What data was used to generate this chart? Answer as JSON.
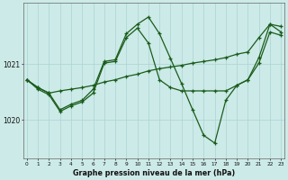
{
  "title": "Graphe pression niveau de la mer (hPa)",
  "background_color": "#cceae8",
  "grid_color": "#aad4d2",
  "line_color": "#1a5c1a",
  "x_labels": [
    "0",
    "1",
    "2",
    "3",
    "4",
    "5",
    "6",
    "7",
    "8",
    "9",
    "10",
    "11",
    "12",
    "13",
    "14",
    "15",
    "16",
    "17",
    "18",
    "19",
    "20",
    "21",
    "22",
    "23"
  ],
  "y_ticks": [
    1020,
    1021
  ],
  "ylim": [
    1019.3,
    1022.1
  ],
  "xlim": [
    -0.3,
    23.3
  ],
  "series": [
    [
      1020.72,
      1020.58,
      1020.48,
      1020.52,
      1020.55,
      1020.58,
      1020.62,
      1020.68,
      1020.72,
      1020.78,
      1020.82,
      1020.88,
      1020.92,
      1020.95,
      1020.98,
      1021.02,
      1021.05,
      1021.08,
      1021.12,
      1021.18,
      1021.22,
      1021.48,
      1021.72,
      1021.68
    ],
    [
      1020.72,
      1020.58,
      1020.48,
      1020.18,
      1020.28,
      1020.35,
      1020.55,
      1021.05,
      1021.08,
      1021.55,
      1021.72,
      1021.85,
      1021.55,
      1021.1,
      1020.65,
      1020.18,
      1019.72,
      1019.58,
      1020.35,
      1020.62,
      1020.72,
      1021.12,
      1021.72,
      1021.58
    ],
    [
      1020.72,
      1020.55,
      1020.45,
      1020.15,
      1020.25,
      1020.32,
      1020.48,
      1021.02,
      1021.05,
      1021.48,
      1021.65,
      1021.38,
      1020.72,
      1020.58,
      1020.52,
      1020.52,
      1020.52,
      1020.52,
      1020.52,
      1020.62,
      1020.72,
      1021.02,
      1021.58,
      1021.52
    ]
  ]
}
